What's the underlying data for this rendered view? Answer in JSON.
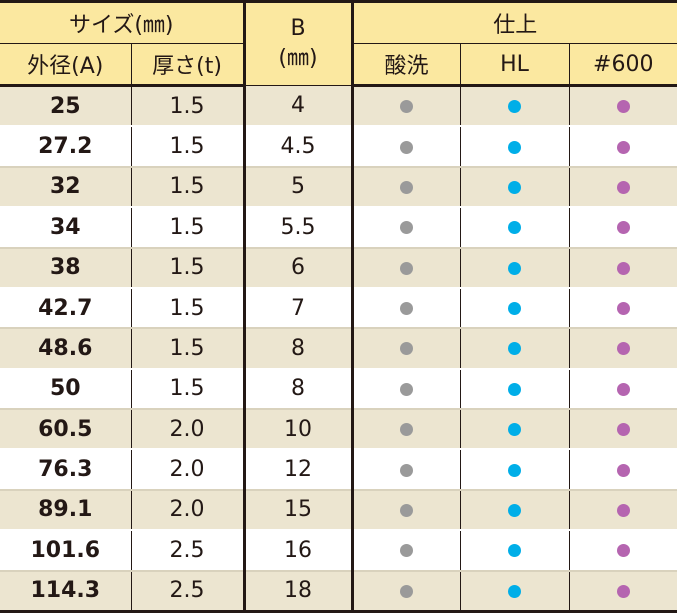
{
  "header": {
    "size_group": "サイズ(㎜)",
    "outer_diameter": "外径(A)",
    "thickness": "厚さ(t)",
    "b_label": "B",
    "b_unit": "(㎜)",
    "finish_group": "仕上",
    "finish_pickled": "酸洗",
    "finish_hl": "HL",
    "finish_600": "#600"
  },
  "colors": {
    "header_bg": "#fbe8a0",
    "stripe_bg": "#ece5d0",
    "pickled_dot": "#9a9a9a",
    "hl_dot": "#00aee8",
    "p600_dot": "#b565b0"
  },
  "rows": [
    {
      "od": "25",
      "t": "1.5",
      "b": "4"
    },
    {
      "od": "27.2",
      "t": "1.5",
      "b": "4.5"
    },
    {
      "od": "32",
      "t": "1.5",
      "b": "5"
    },
    {
      "od": "34",
      "t": "1.5",
      "b": "5.5"
    },
    {
      "od": "38",
      "t": "1.5",
      "b": "6"
    },
    {
      "od": "42.7",
      "t": "1.5",
      "b": "7"
    },
    {
      "od": "48.6",
      "t": "1.5",
      "b": "8"
    },
    {
      "od": "50",
      "t": "1.5",
      "b": "8"
    },
    {
      "od": "60.5",
      "t": "2.0",
      "b": "10"
    },
    {
      "od": "76.3",
      "t": "2.0",
      "b": "12"
    },
    {
      "od": "89.1",
      "t": "2.0",
      "b": "15"
    },
    {
      "od": "101.6",
      "t": "2.5",
      "b": "16"
    },
    {
      "od": "114.3",
      "t": "2.5",
      "b": "18"
    }
  ]
}
